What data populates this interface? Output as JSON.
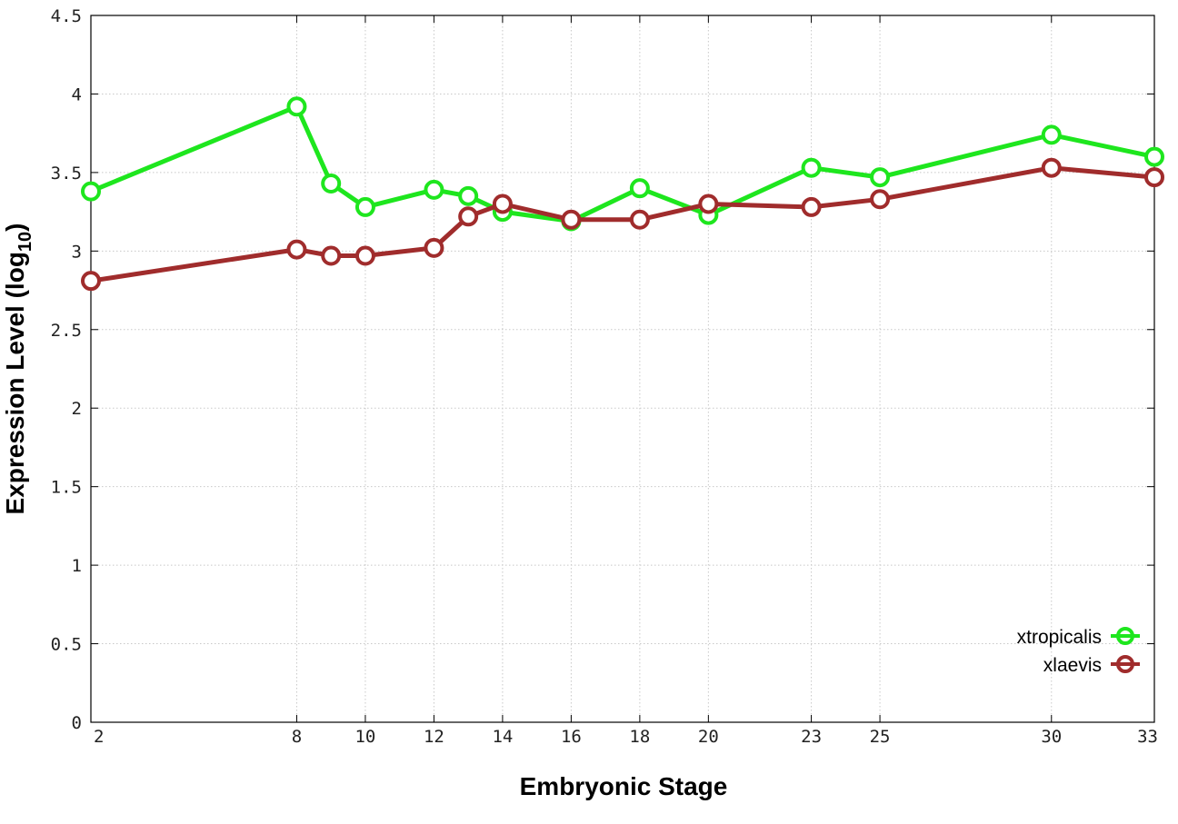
{
  "chart_data": {
    "type": "line",
    "xlabel": "Embryonic Stage",
    "ylabel": "Expression Level (log",
    "ylabel_sub": "10",
    "ylabel_close": ")",
    "xlim": [
      2,
      33
    ],
    "ylim": [
      0,
      4.5
    ],
    "grid": true,
    "legend_position": "bottom-right",
    "x_ticks": [
      2,
      8,
      10,
      12,
      14,
      16,
      18,
      20,
      23,
      25,
      30,
      33
    ],
    "y_ticks": [
      "0",
      "0.5",
      "1",
      "1.5",
      "2",
      "2.5",
      "3",
      "3.5",
      "4",
      "4.5"
    ],
    "series": [
      {
        "name": "xtropicalis",
        "color": "#1ee61e",
        "x": [
          2,
          8,
          9,
          10,
          12,
          13,
          14,
          16,
          18,
          20,
          23,
          25,
          30,
          33
        ],
        "y": [
          3.38,
          3.92,
          3.43,
          3.28,
          3.39,
          3.35,
          3.25,
          3.19,
          3.4,
          3.23,
          3.53,
          3.47,
          3.74,
          3.6
        ]
      },
      {
        "name": "xlaevis",
        "color": "#a02c2c",
        "x": [
          2,
          8,
          9,
          10,
          12,
          13,
          14,
          16,
          18,
          20,
          23,
          25,
          30,
          33
        ],
        "y": [
          2.81,
          3.01,
          2.97,
          2.97,
          3.02,
          3.22,
          3.3,
          3.2,
          3.2,
          3.3,
          3.28,
          3.33,
          3.53,
          3.47
        ]
      }
    ]
  }
}
